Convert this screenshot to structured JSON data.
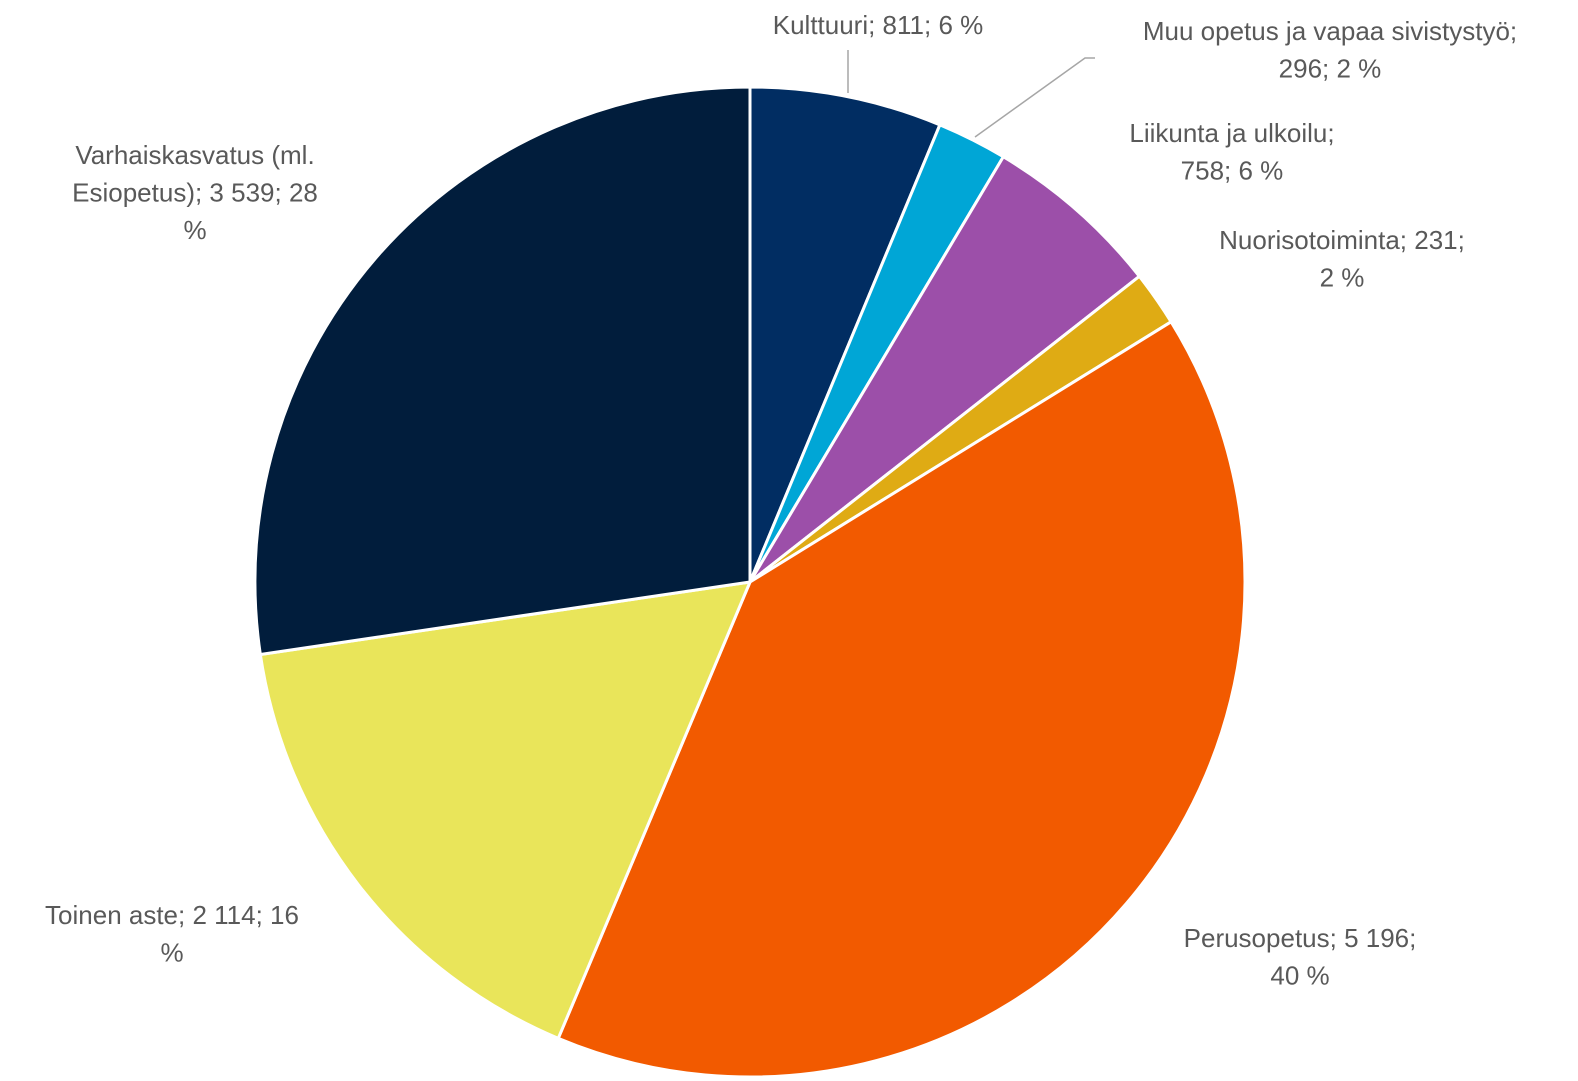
{
  "chart_data": {
    "type": "pie",
    "values": [
      811,
      296,
      758,
      231,
      5196,
      2114,
      3539
    ],
    "labels": [
      [
        "Kulttuuri; 811; 6 %"
      ],
      [
        "Muu opetus ja vapaa sivistystyö;",
        "296; 2 %"
      ],
      [
        "Liikunta ja ulkoilu;",
        "758; 6 %"
      ],
      [
        "Nuorisotoiminta; 231;",
        "2 %"
      ],
      [
        "Perusopetus; 5 196;",
        "40 %"
      ],
      [
        "Toinen aste; 2 114; 16",
        "%"
      ],
      [
        "Varhaiskasvatus (ml.",
        "Esiopetus); 3 539; 28",
        "%"
      ]
    ],
    "colors": [
      "#012d62",
      "#00a6d6",
      "#9c4fa9",
      "#dfab14",
      "#f25a00",
      "#e9e55a",
      "#011d3c"
    ]
  }
}
